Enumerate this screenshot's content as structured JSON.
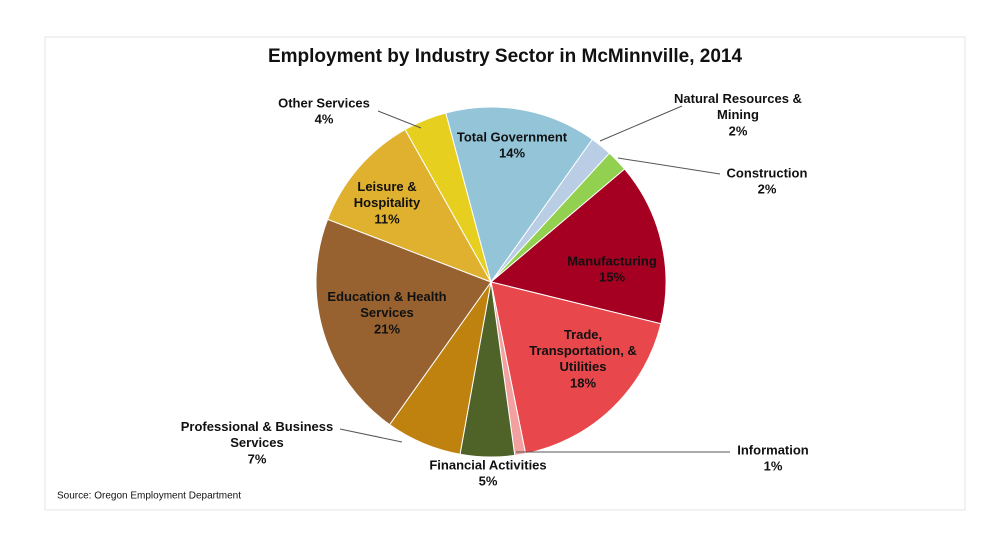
{
  "chart_data": {
    "type": "pie",
    "title": "Employment by Industry Sector in McMinnville, 2014",
    "source": "Source: Oregon Employment Department",
    "categories": [
      "Total Government",
      "Natural Resources & Mining",
      "Construction",
      "Manufacturing",
      "Trade, Transportation, & Utilities",
      "Information",
      "Financial Activities",
      "Professional & Business Services",
      "Education & Health Services",
      "Leisure & Hospitality",
      "Other Services"
    ],
    "values": [
      14,
      2,
      2,
      15,
      18,
      1,
      5,
      7,
      21,
      11,
      4
    ],
    "value_labels": [
      "14%",
      "2%",
      "2%",
      "15%",
      "18%",
      "1%",
      "5%",
      "7%",
      "21%",
      "11%",
      "4%"
    ],
    "colors": [
      "#93c4d8",
      "#b9cde5",
      "#92d050",
      "#a50021",
      "#e8474b",
      "#f2a0a0",
      "#4f6228",
      "#c0820e",
      "#97622f",
      "#e0b12f",
      "#e6cf1e"
    ]
  }
}
